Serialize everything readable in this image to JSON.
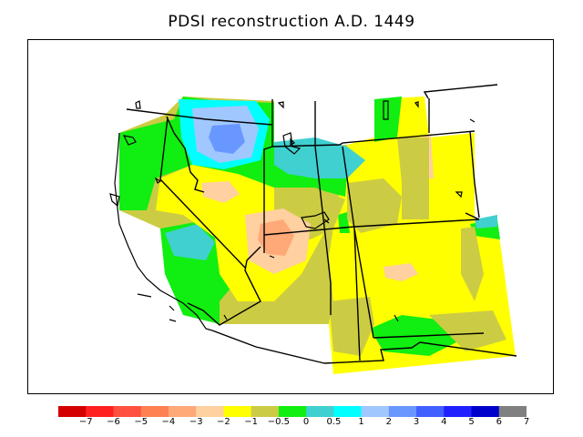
{
  "title": "PDSI reconstruction A.D. 1449",
  "colorbar": {
    "colors": [
      "#d40000",
      "#ff2020",
      "#ff5040",
      "#ff8050",
      "#ffa878",
      "#ffd0a0",
      "#ffff00",
      "#cccc44",
      "#11ee11",
      "#40d0d0",
      "#00ffff",
      "#a0c8ff",
      "#6898ff",
      "#4060ff",
      "#2020ff",
      "#0000cc",
      "#808080"
    ],
    "labels": [
      "−7",
      "−6",
      "−5",
      "−4",
      "−3",
      "−2",
      "−1",
      "−0.5",
      "0",
      "0.5",
      "1",
      "2",
      "3",
      "4",
      "5",
      "6",
      "7"
    ]
  },
  "palette": {
    "yellow": "#ffff00",
    "olive": "#cccc44",
    "green": "#11ee11",
    "teal": "#40d0d0",
    "cyan": "#00ffff",
    "light_blue": "#a0c8ff",
    "blue": "#6898ff",
    "peach": "#ffd0a0",
    "orange": "#ffa878"
  }
}
